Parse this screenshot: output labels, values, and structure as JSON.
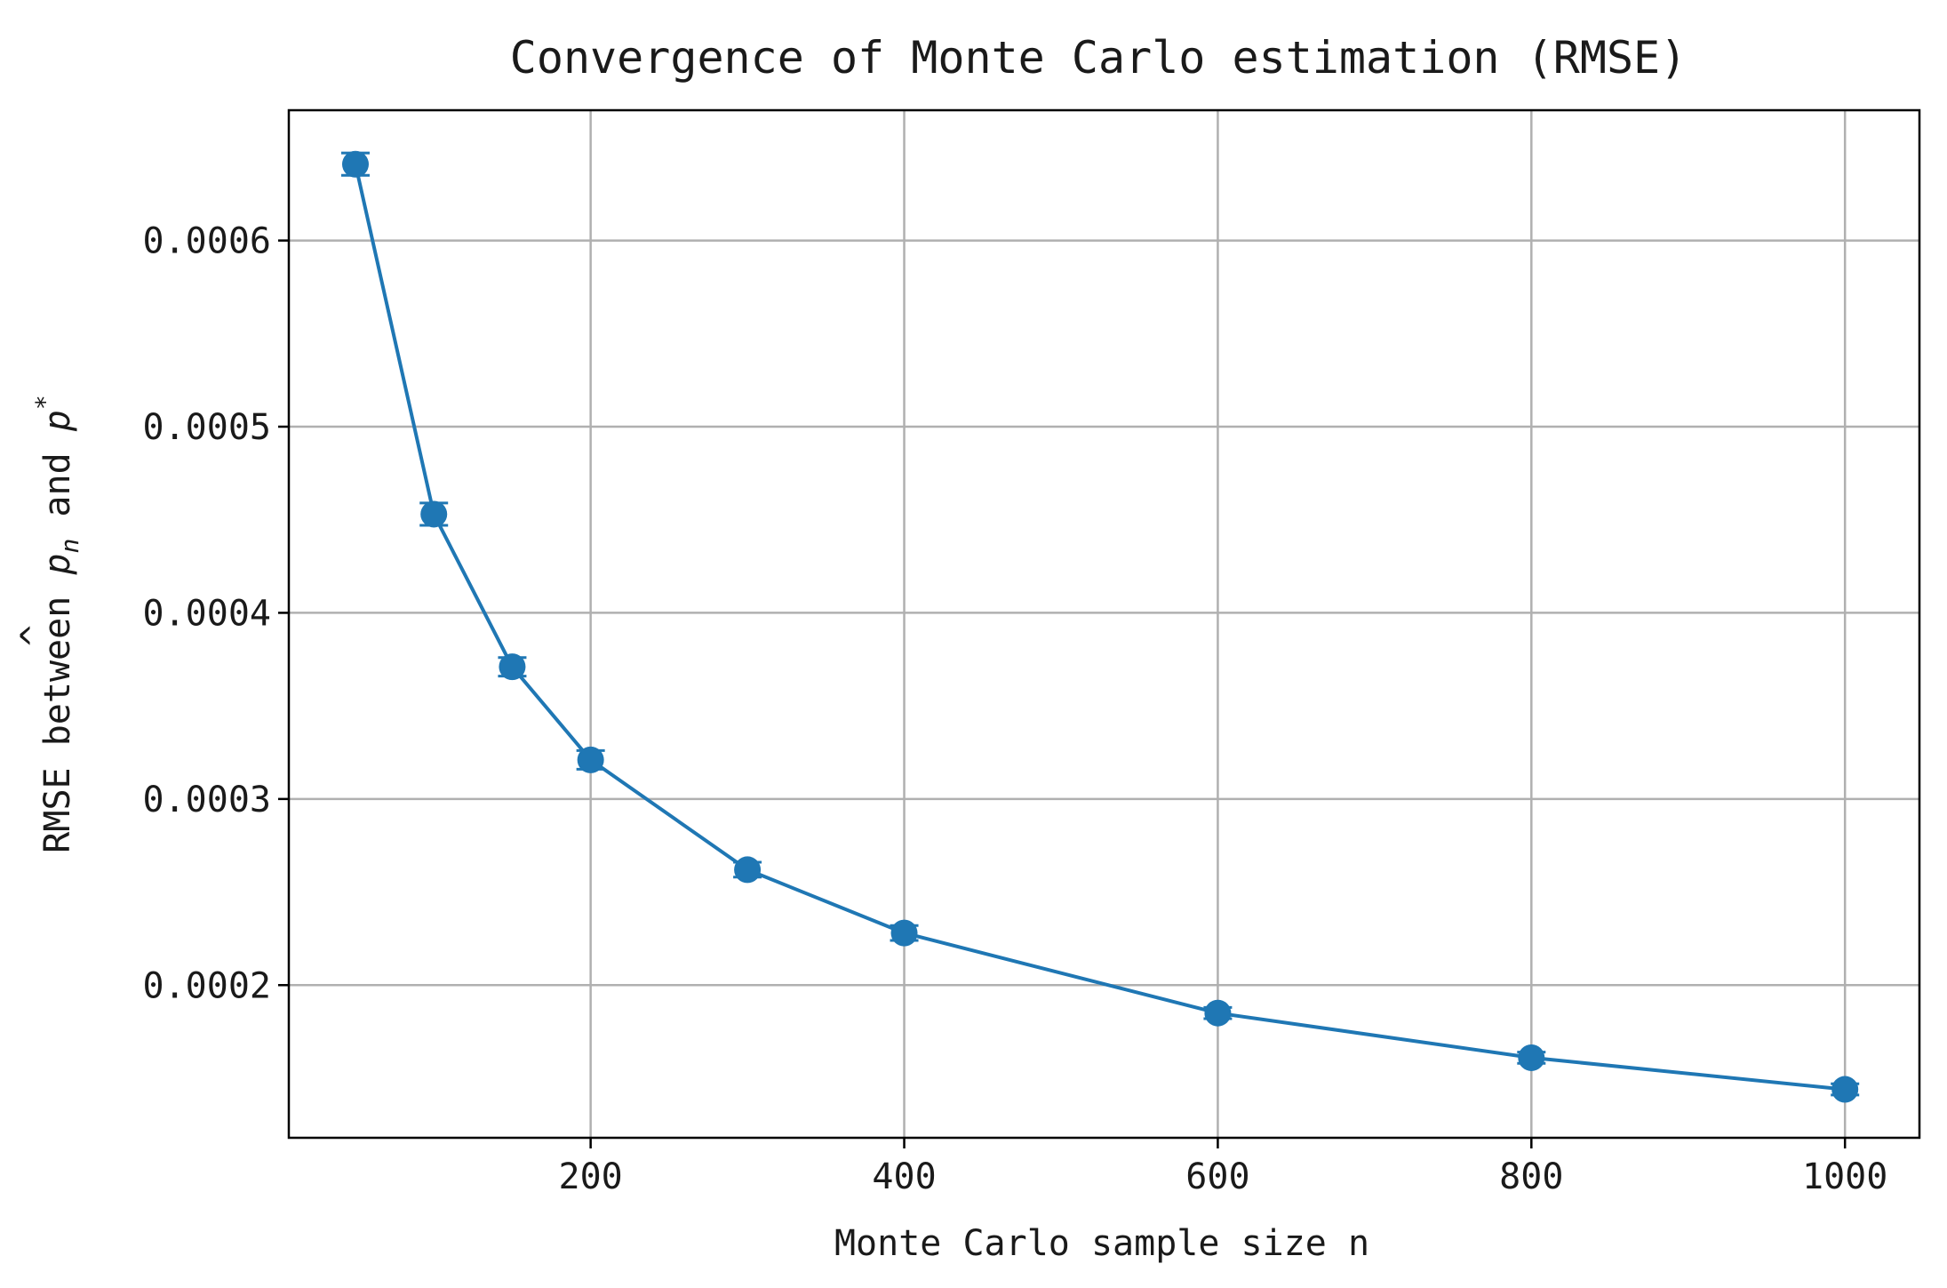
{
  "chart_data": {
    "type": "line",
    "title": "Convergence of Monte Carlo estimation (RMSE)",
    "xlabel": "Monte Carlo sample size n",
    "ylabel": {
      "prefix": "RMSE between ",
      "p_hat": "p",
      "hat_mark": "^",
      "sub_n": "n",
      "middle": " and ",
      "p_star": "p",
      "sup_star": "*"
    },
    "x_ticks": [
      200,
      400,
      600,
      800,
      1000
    ],
    "x_tick_labels": [
      "200",
      "400",
      "600",
      "800",
      "1000"
    ],
    "y_ticks": [
      0.0002,
      0.0003,
      0.0004,
      0.0005,
      0.0006
    ],
    "y_tick_labels": [
      "0.0002",
      "0.0003",
      "0.0004",
      "0.0005",
      "0.0006"
    ],
    "xlim": [
      7.5,
      1047.5
    ],
    "ylim": [
      0.000118,
      0.00067
    ],
    "grid": true,
    "color": "#1f77b4",
    "series": [
      {
        "x": [
          50,
          100,
          150,
          200,
          300,
          400,
          600,
          800,
          1000
        ],
        "y": [
          0.000641,
          0.000453,
          0.000371,
          0.000321,
          0.000262,
          0.000228,
          0.000185,
          0.000161,
          0.000144
        ],
        "err": [
          6e-06,
          6e-06,
          5e-06,
          5e-06,
          4e-06,
          4e-06,
          3e-06,
          3e-06,
          3e-06
        ]
      }
    ]
  }
}
